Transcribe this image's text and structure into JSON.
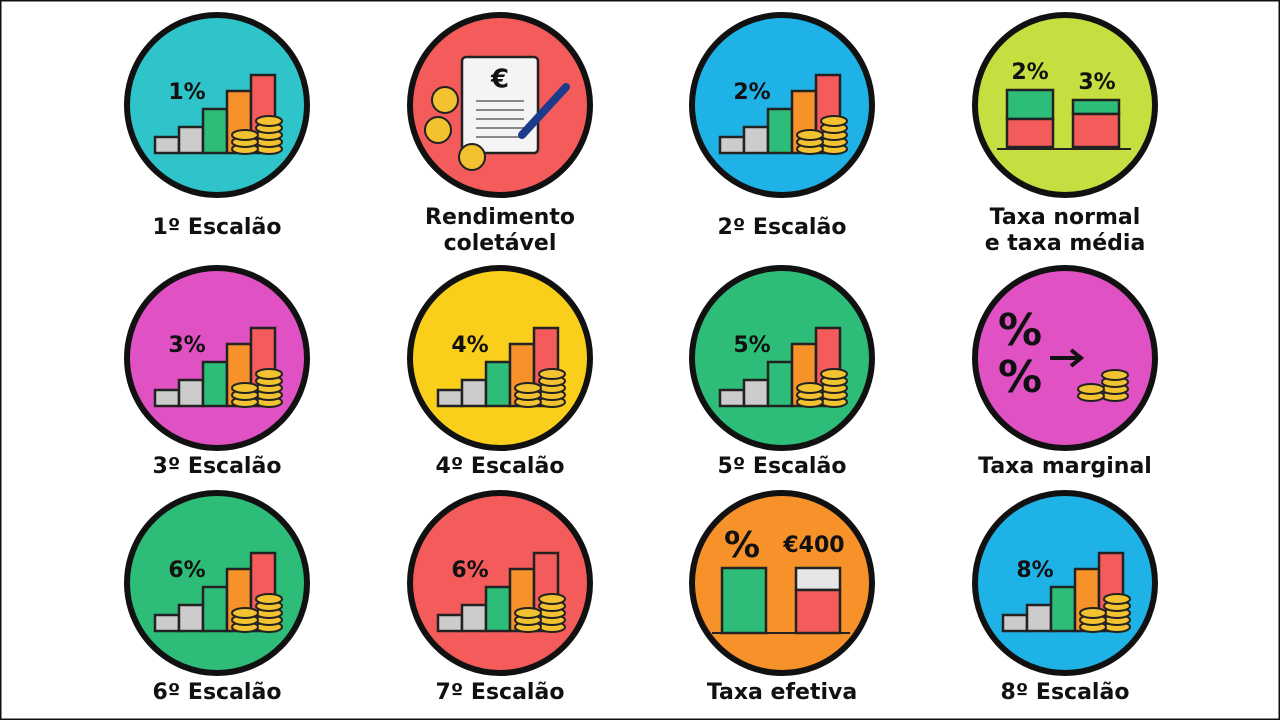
{
  "items": [
    {
      "label": [
        "1º Escalão"
      ],
      "icon": "steps",
      "color": "#2ec4c9",
      "texts": [
        "1%"
      ]
    },
    {
      "label": [
        "Rendimento",
        "coletável"
      ],
      "icon": "document",
      "color": "#f45b5b",
      "texts": [
        "€"
      ]
    },
    {
      "label": [
        "2º Escalão"
      ],
      "icon": "steps",
      "color": "#1fb2e6",
      "texts": [
        "2%"
      ]
    },
    {
      "label": [
        "Taxa normal",
        "e taxa média"
      ],
      "icon": "compare",
      "color": "#c6de3f",
      "texts": [
        "2%",
        "3%"
      ]
    },
    {
      "label": [
        "3º Escalão"
      ],
      "icon": "steps",
      "color": "#e052c4",
      "texts": [
        "3%"
      ]
    },
    {
      "label": [
        "4º Escalão"
      ],
      "icon": "steps",
      "color": "#f9cf1c",
      "texts": [
        "4%"
      ]
    },
    {
      "label": [
        "5º Escalão"
      ],
      "icon": "steps",
      "color": "#2dbd78",
      "texts": [
        "5%"
      ]
    },
    {
      "label": [
        "Taxa marginal"
      ],
      "icon": "marginal",
      "color": "#e052c4",
      "texts": [
        "%",
        "%"
      ]
    },
    {
      "label": [
        "6º Escalão"
      ],
      "icon": "steps",
      "color": "#2dbd78",
      "texts": [
        "6%"
      ]
    },
    {
      "label": [
        "7º Escalão"
      ],
      "icon": "steps",
      "color": "#f45b5b",
      "texts": [
        "6%"
      ]
    },
    {
      "label": [
        "Taxa efetiva"
      ],
      "icon": "effective",
      "color": "#f7922a",
      "texts": [
        "%",
        "€400"
      ]
    },
    {
      "label": [
        "8º Escalão"
      ],
      "icon": "steps",
      "color": "#1fb2e6",
      "texts": [
        "8%"
      ]
    }
  ]
}
